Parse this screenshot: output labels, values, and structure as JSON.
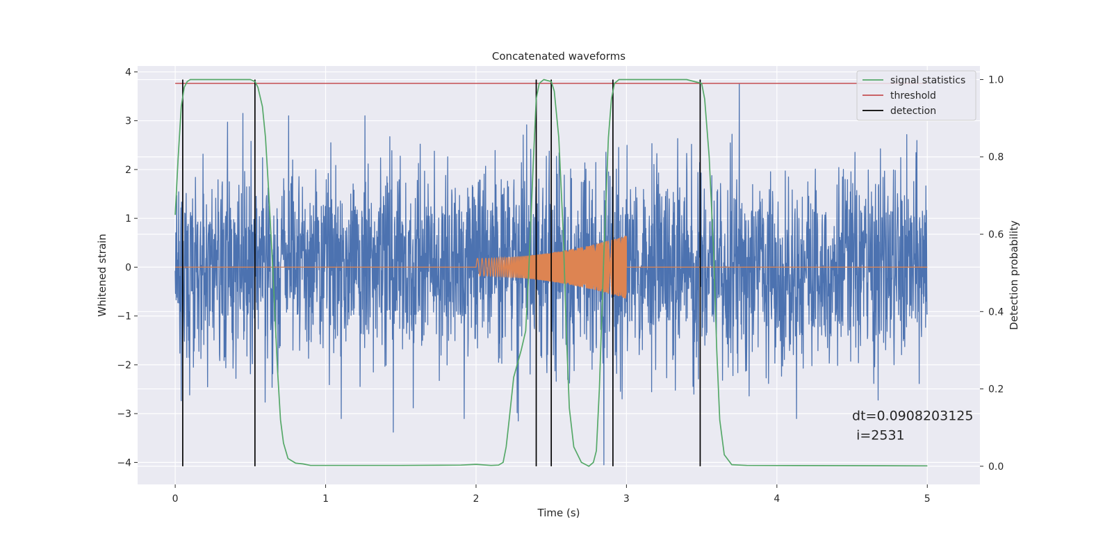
{
  "chart_data": {
    "type": "line",
    "title": "Concatenated waveforms",
    "xlabel": "Time (s)",
    "ylabel": "Whitened strain",
    "y2label": "Detection probability",
    "xlim": [
      -0.25,
      5.35
    ],
    "ylim": [
      -4.45,
      4.12
    ],
    "y2lim": [
      -0.047,
      1.035
    ],
    "xticks": [
      0,
      1,
      2,
      3,
      4,
      5
    ],
    "yticks": [
      -4,
      -3,
      -2,
      -1,
      0,
      1,
      2,
      3,
      4
    ],
    "y2ticks": [
      0.0,
      0.2,
      0.4,
      0.6,
      0.8,
      1.0
    ],
    "ytick_labels": [
      "−4",
      "−3",
      "−2",
      "−1",
      "0",
      "1",
      "2",
      "3",
      "4"
    ],
    "y2tick_labels": [
      "0.0",
      "0.2",
      "0.4",
      "0.6",
      "0.8",
      "1.0"
    ],
    "grid": true,
    "legend_position": "top-right",
    "legend": [
      {
        "label": "signal statistics",
        "color": "#55a868"
      },
      {
        "label": "threshold",
        "color": "#c44e52"
      },
      {
        "label": "detection",
        "color": "#000000"
      }
    ],
    "annotation": {
      "line1": "dt=0.0908203125",
      "line2": " i=2531",
      "x": 4.5,
      "y": -3.25
    },
    "strain_noise": {
      "color": "#4c72b0",
      "t_start": 0.0,
      "t_end": 5.0,
      "typical_amplitude": 1.0,
      "extremes": [
        [
          3.75,
          3.75
        ],
        [
          1.45,
          -3.38
        ],
        [
          2.85,
          -4.05
        ],
        [
          0.45,
          3.15
        ],
        [
          2.28,
          -3.15
        ]
      ]
    },
    "injected_chirp": {
      "color": "#dd8452",
      "t_start": 2.0,
      "t_end": 3.0,
      "amplitude_start": 0.18,
      "amplitude_end": 0.65
    },
    "threshold": {
      "value": 0.99,
      "t_start": 0.0,
      "t_end": 5.0
    },
    "signal_statistics": {
      "x": [
        0,
        0.02,
        0.04,
        0.06,
        0.08,
        0.1,
        0.15,
        0.3,
        0.5,
        0.53,
        0.55,
        0.58,
        0.6,
        0.62,
        0.65,
        0.68,
        0.7,
        0.72,
        0.75,
        0.8,
        0.85,
        0.9,
        1.5,
        1.9,
        2.0,
        2.1,
        2.15,
        2.18,
        2.2,
        2.22,
        2.25,
        2.3,
        2.33,
        2.35,
        2.38,
        2.4,
        2.42,
        2.45,
        2.5,
        2.52,
        2.55,
        2.58,
        2.6,
        2.62,
        2.65,
        2.7,
        2.75,
        2.78,
        2.8,
        2.82,
        2.85,
        2.88,
        2.9,
        2.92,
        2.95,
        3.0,
        3.4,
        3.5,
        3.52,
        3.55,
        3.58,
        3.6,
        3.62,
        3.65,
        3.7,
        3.8,
        5.0
      ],
      "y": [
        0.65,
        0.8,
        0.93,
        0.98,
        0.995,
        1.0,
        1.0,
        1.0,
        1.0,
        0.995,
        0.98,
        0.93,
        0.85,
        0.72,
        0.5,
        0.25,
        0.12,
        0.06,
        0.02,
        0.008,
        0.006,
        0.002,
        0.002,
        0.003,
        0.005,
        0.002,
        0.003,
        0.01,
        0.05,
        0.12,
        0.23,
        0.3,
        0.35,
        0.5,
        0.78,
        0.95,
        0.99,
        1.0,
        0.995,
        0.97,
        0.85,
        0.6,
        0.35,
        0.15,
        0.05,
        0.01,
        0.0,
        0.01,
        0.04,
        0.2,
        0.55,
        0.85,
        0.95,
        0.99,
        1.0,
        1.0,
        1.0,
        0.99,
        0.95,
        0.8,
        0.55,
        0.3,
        0.12,
        0.03,
        0.004,
        0.002,
        0.001
      ]
    },
    "detections": [
      0.05,
      0.53,
      2.4,
      2.5,
      2.91,
      3.49
    ]
  }
}
